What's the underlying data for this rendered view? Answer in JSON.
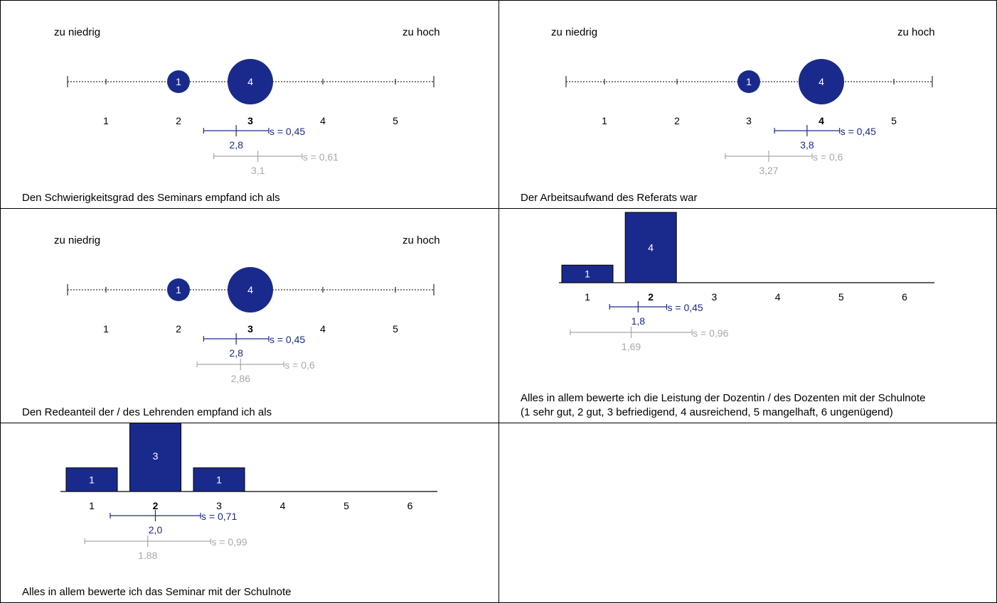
{
  "colors": {
    "primary": "#1a2a8c",
    "reference": "#a8a8a8",
    "axis": "#000000"
  },
  "chart_data": [
    {
      "type": "scale",
      "left_label": "zu niedrig",
      "right_label": "zu hoch",
      "categories": [
        "1",
        "2",
        "3",
        "4",
        "5"
      ],
      "counts": [
        0,
        1,
        4,
        0,
        0
      ],
      "highlight": "3",
      "stats": {
        "mean": 2.8,
        "mean_label": "2,8",
        "s_label": "s = 0,45"
      },
      "ref_stats": {
        "mean": 3.1,
        "mean_label": "3,1",
        "s_label": "s = 0,61"
      },
      "question": "Den Schwierigkeitsgrad des Seminars empfand ich als"
    },
    {
      "type": "scale",
      "left_label": "zu niedrig",
      "right_label": "zu hoch",
      "categories": [
        "1",
        "2",
        "3",
        "4",
        "5"
      ],
      "counts": [
        0,
        0,
        1,
        4,
        0
      ],
      "highlight": "4",
      "stats": {
        "mean": 3.8,
        "mean_label": "3,8",
        "s_label": "s = 0,45"
      },
      "ref_stats": {
        "mean": 3.27,
        "mean_label": "3,27",
        "s_label": "s = 0,6"
      },
      "question": "Der Arbeitsaufwand des Referats war"
    },
    {
      "type": "scale",
      "left_label": "zu niedrig",
      "right_label": "zu hoch",
      "categories": [
        "1",
        "2",
        "3",
        "4",
        "5"
      ],
      "counts": [
        0,
        1,
        4,
        0,
        0
      ],
      "highlight": "3",
      "stats": {
        "mean": 2.8,
        "mean_label": "2,8",
        "s_label": "s = 0,45"
      },
      "ref_stats": {
        "mean": 2.86,
        "mean_label": "2,86",
        "s_label": "s = 0,6"
      },
      "question": "Den Redeanteil der / des Lehrenden empfand ich als"
    },
    {
      "type": "bar",
      "categories": [
        "1",
        "2",
        "3",
        "4",
        "5",
        "6"
      ],
      "values": [
        1,
        4,
        0,
        0,
        0,
        0
      ],
      "highlight": "2",
      "stats": {
        "mean": 1.8,
        "mean_label": "1,8",
        "s_label": "s = 0,45"
      },
      "ref_stats": {
        "mean": 1.69,
        "mean_label": "1,69",
        "s_label": "s = 0,96"
      },
      "question": "Alles in allem bewerte ich die Leistung der Dozentin / des Dozenten mit der Schulnote\n(1 sehr gut, 2 gut, 3 befriedigend, 4 ausreichend, 5 mangelhaft, 6 ungenügend)"
    },
    {
      "type": "bar",
      "categories": [
        "1",
        "2",
        "3",
        "4",
        "5",
        "6"
      ],
      "values": [
        1,
        3,
        1,
        0,
        0,
        0
      ],
      "highlight": "2",
      "stats": {
        "mean": 2.0,
        "mean_label": "2,0",
        "s_label": "s = 0,71"
      },
      "ref_stats": {
        "mean": 1.88,
        "mean_label": "1.88",
        "s_label": "s = 0,99"
      },
      "question": "Alles in allem bewerte ich das Seminar mit der Schulnote"
    }
  ]
}
